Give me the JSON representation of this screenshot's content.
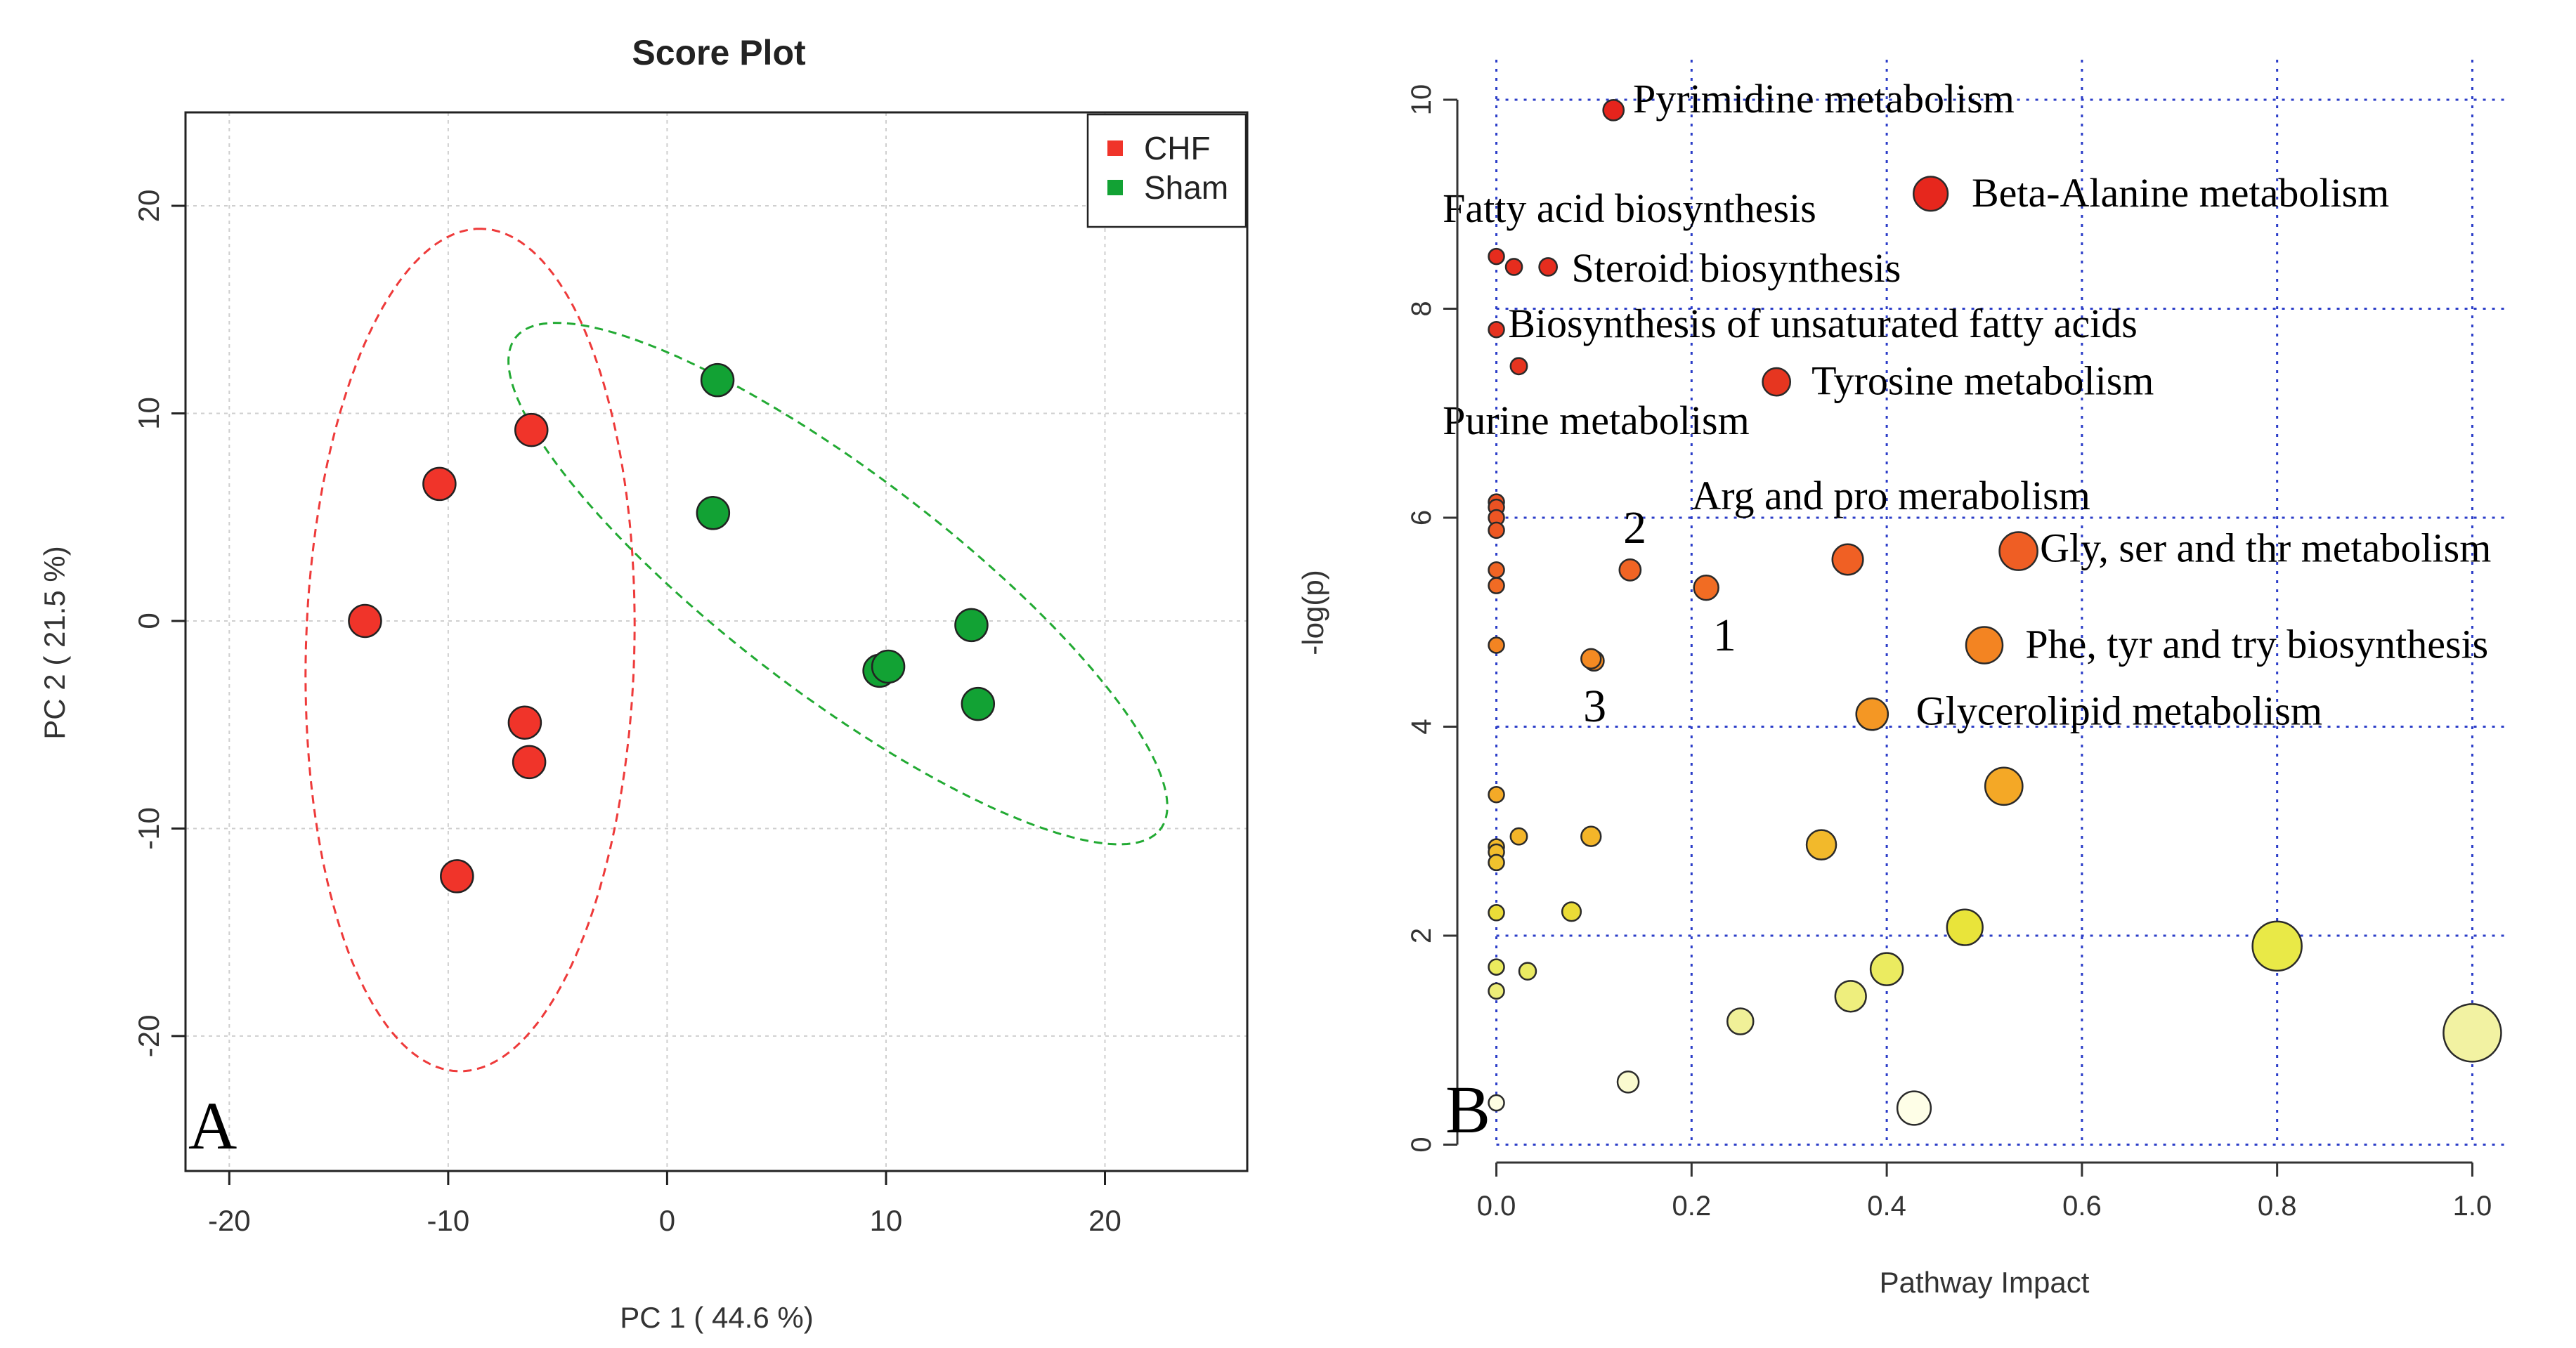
{
  "chart_data": [
    {
      "type": "scatter",
      "panel_label": "A",
      "title": "Score Plot",
      "xlabel": "PC 1 ( 44.6 %)",
      "ylabel": "PC 2 ( 21.5 %)",
      "xlim": [
        -22,
        26.5
      ],
      "ylim": [
        -26.5,
        24.5
      ],
      "xticks": [
        -20,
        -10,
        0,
        10,
        20
      ],
      "yticks": [
        -20,
        -10,
        0,
        10,
        20
      ],
      "xtick_labels": [
        "-20",
        "-10",
        "0",
        "10",
        "20"
      ],
      "ytick_labels": [
        "-20",
        "-10",
        "0",
        "10",
        "20"
      ],
      "grid": true,
      "legend_position": "top-right",
      "series": [
        {
          "name": "CHF",
          "color": "#f0342a",
          "x": [
            -6.2,
            -10.4,
            -13.8,
            -6.5,
            -6.3,
            -9.6
          ],
          "y": [
            9.2,
            6.6,
            0.0,
            -4.9,
            -6.8,
            -12.3
          ],
          "ellipse": {
            "center": [
              -9.0,
              -1.4
            ],
            "semi_axis_a": 20.3,
            "semi_axis_b": 7.5,
            "rotation_deg": 88.5,
            "color": "#ee3a3a"
          }
        },
        {
          "name": "Sham",
          "color": "#12a234",
          "x": [
            2.3,
            2.1,
            13.9,
            9.7,
            10.1,
            14.2
          ],
          "y": [
            11.6,
            5.2,
            -0.2,
            -2.4,
            -2.2,
            -4.0
          ],
          "ellipse": {
            "center": [
              7.8,
              1.8
            ],
            "semi_axis_a": 18.9,
            "semi_axis_b": 5.2,
            "rotation_deg": -39.0,
            "color": "#22aa33"
          }
        }
      ]
    },
    {
      "type": "scatter",
      "panel_label": "B",
      "xlabel": "Pathway Impact",
      "ylabel": "-log(p)",
      "xlim": [
        -0.04,
        1.04
      ],
      "ylim": [
        -0.05,
        10.45
      ],
      "xticks": [
        0.0,
        0.2,
        0.4,
        0.6,
        0.8,
        1.0
      ],
      "yticks": [
        0,
        2,
        4,
        6,
        8,
        10
      ],
      "xtick_labels": [
        "0.0",
        "0.2",
        "0.4",
        "0.6",
        "0.8",
        "1.0"
      ],
      "ytick_labels": [
        "0",
        "2",
        "4",
        "6",
        "8",
        "10"
      ],
      "grid": true,
      "color_scale": "-log(p): white (low) to yellow to orange to red (high)",
      "size_encoding": "Pathway Impact",
      "points": [
        {
          "x": 0.12,
          "y": 9.9,
          "size": 0.12
        },
        {
          "x": 0.445,
          "y": 9.1,
          "size": 0.445
        },
        {
          "x": 0.0,
          "y": 8.5,
          "size": 0.0
        },
        {
          "x": 0.018,
          "y": 8.4,
          "size": 0.018
        },
        {
          "x": 0.053,
          "y": 8.4,
          "size": 0.053
        },
        {
          "x": 0.0,
          "y": 7.8,
          "size": 0.0
        },
        {
          "x": 0.023,
          "y": 7.45,
          "size": 0.023
        },
        {
          "x": 0.287,
          "y": 7.3,
          "size": 0.287
        },
        {
          "x": 0.0,
          "y": 6.15,
          "size": 0.0
        },
        {
          "x": 0.0,
          "y": 6.1,
          "size": 0.0
        },
        {
          "x": 0.0,
          "y": 6.0,
          "size": 0.0
        },
        {
          "x": 0.0,
          "y": 5.88,
          "size": 0.0
        },
        {
          "x": 0.36,
          "y": 5.6,
          "size": 0.36
        },
        {
          "x": 0.535,
          "y": 5.68,
          "size": 0.535
        },
        {
          "x": 0.137,
          "y": 5.5,
          "size": 0.137
        },
        {
          "x": 0.0,
          "y": 5.5,
          "size": 0.0
        },
        {
          "x": 0.0,
          "y": 5.35,
          "size": 0.0
        },
        {
          "x": 0.215,
          "y": 5.33,
          "size": 0.215
        },
        {
          "x": 0.0,
          "y": 4.78,
          "size": 0.0
        },
        {
          "x": 0.5,
          "y": 4.78,
          "size": 0.5
        },
        {
          "x": 0.097,
          "y": 4.65,
          "size": 0.097
        },
        {
          "x": 0.1,
          "y": 4.63,
          "size": 0.1
        },
        {
          "x": 0.385,
          "y": 4.12,
          "size": 0.385
        },
        {
          "x": 0.52,
          "y": 3.43,
          "size": 0.52
        },
        {
          "x": 0.0,
          "y": 3.35,
          "size": 0.0
        },
        {
          "x": 0.023,
          "y": 2.95,
          "size": 0.023
        },
        {
          "x": 0.097,
          "y": 2.95,
          "size": 0.097
        },
        {
          "x": 0.333,
          "y": 2.87,
          "size": 0.333
        },
        {
          "x": 0.0,
          "y": 2.85,
          "size": 0.0
        },
        {
          "x": 0.0,
          "y": 2.8,
          "size": 0.0
        },
        {
          "x": 0.0,
          "y": 2.7,
          "size": 0.0
        },
        {
          "x": 0.077,
          "y": 2.23,
          "size": 0.077
        },
        {
          "x": 0.0,
          "y": 2.22,
          "size": 0.0
        },
        {
          "x": 0.48,
          "y": 2.08,
          "size": 0.48
        },
        {
          "x": 0.8,
          "y": 1.9,
          "size": 0.8
        },
        {
          "x": 0.0,
          "y": 1.7,
          "size": 0.0
        },
        {
          "x": 0.032,
          "y": 1.66,
          "size": 0.032
        },
        {
          "x": 0.4,
          "y": 1.68,
          "size": 0.4
        },
        {
          "x": 0.0,
          "y": 1.47,
          "size": 0.0
        },
        {
          "x": 0.363,
          "y": 1.42,
          "size": 0.363
        },
        {
          "x": 0.25,
          "y": 1.18,
          "size": 0.25
        },
        {
          "x": 1.0,
          "y": 1.07,
          "size": 1.0
        },
        {
          "x": 0.135,
          "y": 0.6,
          "size": 0.135
        },
        {
          "x": 0.0,
          "y": 0.4,
          "size": 0.0
        },
        {
          "x": 0.428,
          "y": 0.35,
          "size": 0.428
        }
      ],
      "annotations": [
        {
          "text": "Pyrimidine metabolism",
          "x": 0.14,
          "y": 10.0
        },
        {
          "text": "Beta-Alanine metabolism",
          "x": 0.487,
          "y": 9.1
        },
        {
          "text": "Fatty acid biosynthesis",
          "x": -0.055,
          "y": 8.95
        },
        {
          "text": "Steroid biosynthesis",
          "x": 0.077,
          "y": 8.38
        },
        {
          "text": "Biosynthesis of unsaturated fatty acids",
          "x": 0.012,
          "y": 7.85
        },
        {
          "text": "Tyrosine metabolism",
          "x": 0.323,
          "y": 7.3
        },
        {
          "text": "Purine metabolism",
          "x": -0.055,
          "y": 6.92
        },
        {
          "text": "Arg and pro merabolism",
          "x": 0.2,
          "y": 6.2
        },
        {
          "text": "2",
          "x": 0.13,
          "y": 5.88
        },
        {
          "text": "Gly, ser and thr metabolism",
          "x": 0.557,
          "y": 5.7
        },
        {
          "text": "1",
          "x": 0.222,
          "y": 4.85
        },
        {
          "text": "Phe, tyr and try biosynthesis",
          "x": 0.542,
          "y": 4.78
        },
        {
          "text": "3",
          "x": 0.089,
          "y": 4.17
        },
        {
          "text": "Glycerolipid metabolism",
          "x": 0.43,
          "y": 4.14
        }
      ]
    }
  ]
}
